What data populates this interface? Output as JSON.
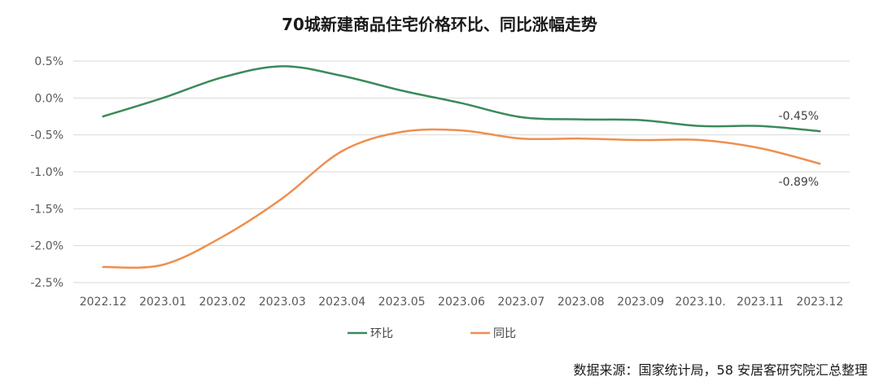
{
  "chart_data": {
    "type": "line",
    "title": "70城新建商品住宅价格环比、同比涨幅走势",
    "categories": [
      "2022.12",
      "2023.01",
      "2023.02",
      "2023.03",
      "2023.04",
      "2023.05",
      "2023.06",
      "2023.07",
      "2023.08",
      "2023.09",
      "2023.10.",
      "2023.11",
      "2023.12"
    ],
    "y_ticks": [
      "0.5%",
      "0.0%",
      "-0.5%",
      "-1.0%",
      "-1.5%",
      "-2.0%",
      "-2.5%"
    ],
    "ylim": [
      -2.5,
      0.5
    ],
    "grid": true,
    "legend_position": "bottom",
    "series": [
      {
        "name": "环比",
        "color": "#3a8a5a",
        "values": [
          -0.25,
          0.0,
          0.28,
          0.43,
          0.3,
          0.1,
          -0.07,
          -0.26,
          -0.29,
          -0.3,
          -0.38,
          -0.38,
          -0.45
        ],
        "end_label": "-0.45%"
      },
      {
        "name": "同比",
        "color": "#ee8f4e",
        "values": [
          -2.29,
          -2.26,
          -1.88,
          -1.36,
          -0.72,
          -0.46,
          -0.44,
          -0.55,
          -0.55,
          -0.57,
          -0.57,
          -0.68,
          -0.89
        ],
        "end_label": "-0.89%"
      }
    ]
  },
  "source_note": "数据来源：国家统计局，58 安居客研究院汇总整理"
}
